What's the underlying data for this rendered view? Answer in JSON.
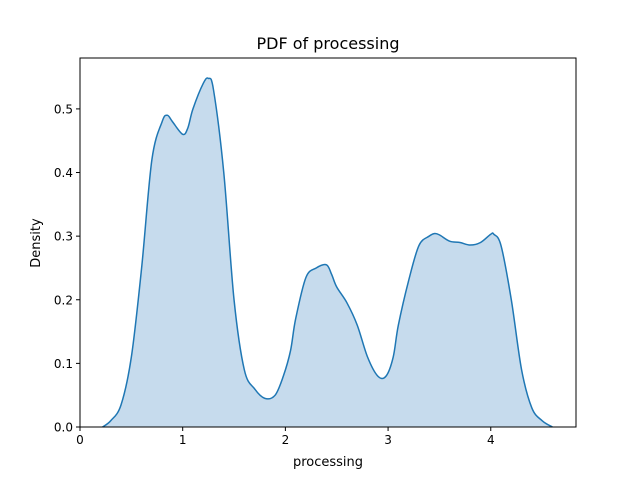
{
  "chart_data": {
    "type": "area",
    "title": "PDF of processing",
    "xlabel": "processing",
    "ylabel": "Density",
    "xlim": [
      0,
      4.83
    ],
    "ylim": [
      0,
      0.58
    ],
    "xticks": [
      0,
      1,
      2,
      3,
      4
    ],
    "xtick_labels": [
      "0",
      "1",
      "2",
      "3",
      "4"
    ],
    "yticks": [
      0.0,
      0.1,
      0.2,
      0.3,
      0.4,
      0.5
    ],
    "ytick_labels": [
      "0.0",
      "0.1",
      "0.2",
      "0.3",
      "0.4",
      "0.5"
    ],
    "grid": false,
    "legend": "none",
    "series": [
      {
        "color": "#1f77b4",
        "fill_color": "#c6dbed",
        "x": [
          0.22,
          0.3,
          0.4,
          0.5,
          0.6,
          0.7,
          0.8,
          0.85,
          0.9,
          1.0,
          1.05,
          1.1,
          1.2,
          1.25,
          1.3,
          1.4,
          1.5,
          1.6,
          1.7,
          1.8,
          1.9,
          1.98,
          2.05,
          2.1,
          2.2,
          2.3,
          2.4,
          2.45,
          2.5,
          2.6,
          2.7,
          2.8,
          2.9,
          2.98,
          3.05,
          3.1,
          3.2,
          3.3,
          3.4,
          3.45,
          3.5,
          3.6,
          3.7,
          3.8,
          3.9,
          4.0,
          4.03,
          4.1,
          4.2,
          4.3,
          4.4,
          4.5,
          4.6
        ],
        "y": [
          0.0,
          0.01,
          0.035,
          0.11,
          0.25,
          0.42,
          0.48,
          0.49,
          0.48,
          0.46,
          0.47,
          0.5,
          0.54,
          0.548,
          0.53,
          0.4,
          0.2,
          0.09,
          0.06,
          0.045,
          0.05,
          0.08,
          0.12,
          0.17,
          0.235,
          0.25,
          0.255,
          0.24,
          0.22,
          0.195,
          0.16,
          0.11,
          0.08,
          0.08,
          0.11,
          0.16,
          0.23,
          0.285,
          0.3,
          0.304,
          0.302,
          0.292,
          0.29,
          0.286,
          0.29,
          0.303,
          0.303,
          0.285,
          0.2,
          0.09,
          0.03,
          0.01,
          0.0
        ]
      }
    ]
  }
}
